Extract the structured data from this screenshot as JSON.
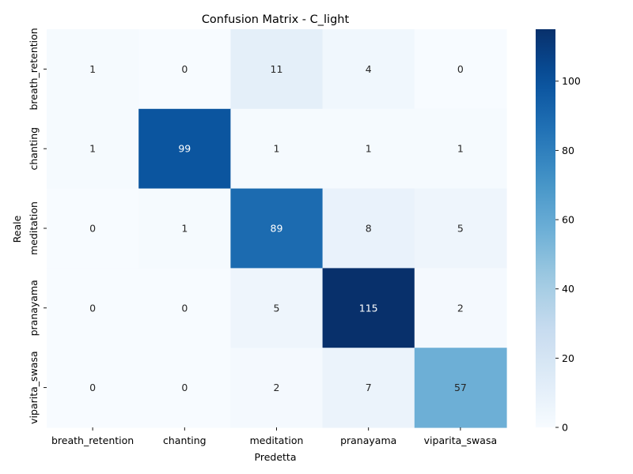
{
  "chart_data": {
    "type": "heatmap",
    "title": "Confusion Matrix - C_light",
    "xlabel": "Predetta",
    "ylabel": "Reale",
    "x_categories": [
      "breath_retention",
      "chanting",
      "meditation",
      "pranayama",
      "viparita_swasa"
    ],
    "y_categories": [
      "breath_retention",
      "chanting",
      "meditation",
      "pranayama",
      "viparita_swasa"
    ],
    "values": [
      [
        1,
        0,
        11,
        4,
        0
      ],
      [
        1,
        99,
        1,
        1,
        1
      ],
      [
        0,
        1,
        89,
        8,
        5
      ],
      [
        0,
        0,
        5,
        115,
        2
      ],
      [
        0,
        0,
        2,
        7,
        57
      ]
    ],
    "colorbar": {
      "range": [
        0,
        115
      ],
      "ticks": [
        0,
        20,
        40,
        60,
        80,
        100
      ],
      "colormap": "Blues"
    }
  }
}
